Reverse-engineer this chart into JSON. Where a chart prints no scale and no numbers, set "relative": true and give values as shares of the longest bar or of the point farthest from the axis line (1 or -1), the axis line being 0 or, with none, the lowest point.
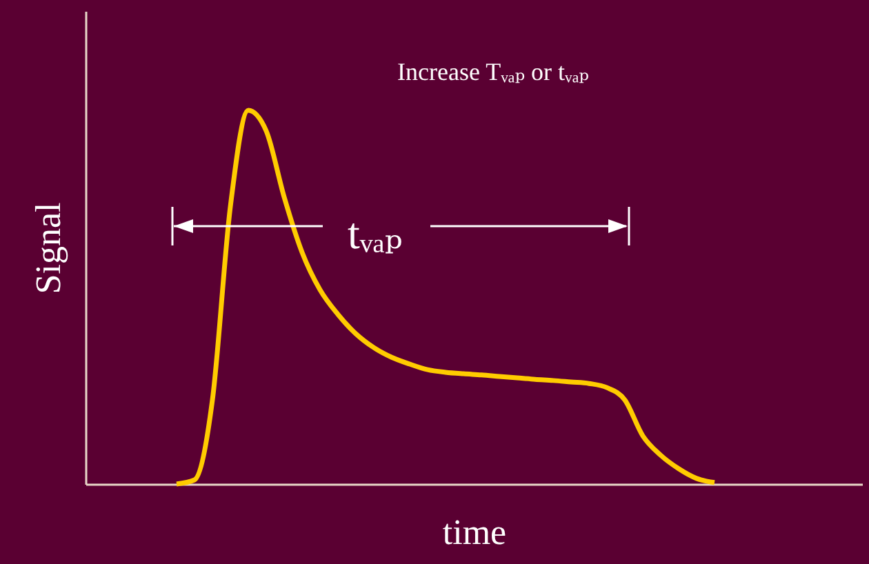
{
  "chart_data": {
    "type": "line",
    "relative": true,
    "xlabel": "time",
    "ylabel": "Signal",
    "color": "#ffcc00",
    "marker": "none",
    "tick_labels": false,
    "categories": [
      null,
      null,
      null,
      null,
      null,
      null,
      null,
      null,
      null,
      null,
      null,
      null,
      null,
      null,
      null,
      null,
      null,
      null,
      null,
      null,
      null,
      null,
      null,
      null,
      null,
      null,
      null,
      null,
      null,
      null,
      null
    ],
    "values": [
      0,
      0.011,
      0.225,
      0.742,
      1,
      0.945,
      0.768,
      0.62,
      0.52,
      0.454,
      0.402,
      0.365,
      0.339,
      0.321,
      0.306,
      0.299,
      0.295,
      0.292,
      0.288,
      0.284,
      0.28,
      0.277,
      0.273,
      0.269,
      0.258,
      0.225,
      0.129,
      0.077,
      0.041,
      0.015,
      0.004
    ],
    "annotations": [
      "Increase Tᵥₐₚ or tᵥₐₚ",
      "tᵥₐₚ"
    ]
  }
}
